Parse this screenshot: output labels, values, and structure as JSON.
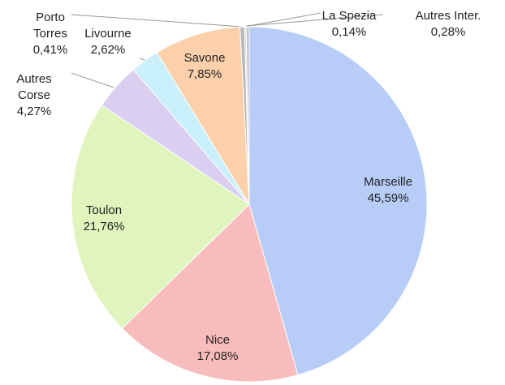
{
  "chart_data": {
    "type": "pie",
    "categories": [
      "Marseille",
      "Nice",
      "Toulon",
      "Autres Corse",
      "Livourne",
      "Savone",
      "Porto Torres",
      "La Spezia",
      "Autres Inter."
    ],
    "values": [
      45.59,
      17.08,
      21.76,
      4.27,
      2.62,
      7.85,
      0.41,
      0.14,
      0.28
    ],
    "value_labels": [
      "45,59%",
      "17,08%",
      "21,76%",
      "4,27%",
      "2,62%",
      "7,85%",
      "0,41%",
      "0,14%",
      "0,28%"
    ],
    "colors": [
      "#b7cdf7",
      "#f9bcbc",
      "#e0f5bd",
      "#dacff0",
      "#c9f0fb",
      "#fbd0aa",
      "#b8b8b8",
      "#d0d0d0",
      "#c4c4c4"
    ]
  }
}
